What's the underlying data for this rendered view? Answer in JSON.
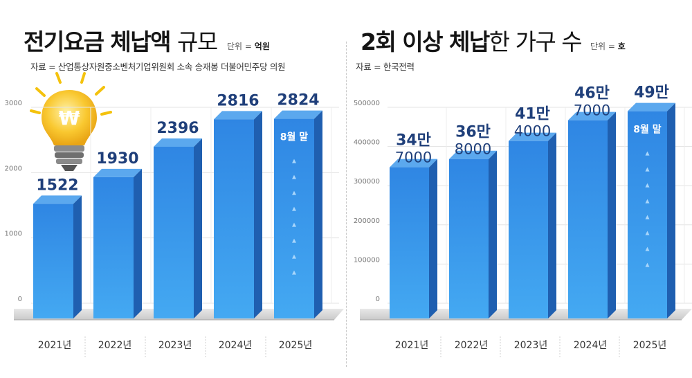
{
  "charts": [
    {
      "title_bold": "전기요금 체납액",
      "title_light": "규모",
      "unit_label": "단위 =",
      "unit_value": "억원",
      "source": "자료 = 산업통상자원중소벤처기업위원회 소속 송재봉 더불어민주당 의원"
    },
    {
      "title_bold": "2회 이상 체납",
      "title_light": "한 가구 수",
      "unit_label": "단위 =",
      "unit_value": "호",
      "source": "자료 =  한국전력"
    }
  ],
  "colors": {
    "bar_front": "#2b8fe6",
    "bar_side": "#1f5fb0",
    "bar_top": "#5ba8ee",
    "label": "#1f3f7a",
    "floor": "#d9d9d9"
  },
  "icon": "lightbulb-won-icon",
  "chart_data": [
    {
      "type": "bar",
      "title": "전기요금 체납액 규모",
      "unit": "억원",
      "categories": [
        "2021년",
        "2022년",
        "2023년",
        "2024년",
        "2025년"
      ],
      "values": [
        1522,
        1930,
        2396,
        2816,
        2824
      ],
      "value_labels": [
        [
          "1522"
        ],
        [
          "1930"
        ],
        [
          "2396"
        ],
        [
          "2816"
        ],
        [
          "2824"
        ]
      ],
      "ylim": [
        0,
        3000
      ],
      "yticks": [
        "0",
        "1000",
        "2000",
        "3000"
      ],
      "grid": true,
      "annotations": [
        {
          "category": "2025년",
          "text": "8월 말"
        }
      ]
    },
    {
      "type": "bar",
      "title": "2회 이상 체납한 가구 수",
      "unit": "호",
      "categories": [
        "2021년",
        "2022년",
        "2023년",
        "2024년",
        "2025년"
      ],
      "values": [
        347000,
        368000,
        414000,
        467000,
        490000
      ],
      "value_labels": [
        [
          "34만",
          "7000"
        ],
        [
          "36만",
          "8000"
        ],
        [
          "41만",
          "4000"
        ],
        [
          "46만",
          "7000"
        ],
        [
          "49만"
        ]
      ],
      "ylim": [
        0,
        500000
      ],
      "yticks": [
        "0",
        "100000",
        "200000",
        "300000",
        "400000",
        "500000"
      ],
      "grid": true,
      "annotations": [
        {
          "category": "2025년",
          "text": "8월 말"
        }
      ]
    }
  ]
}
